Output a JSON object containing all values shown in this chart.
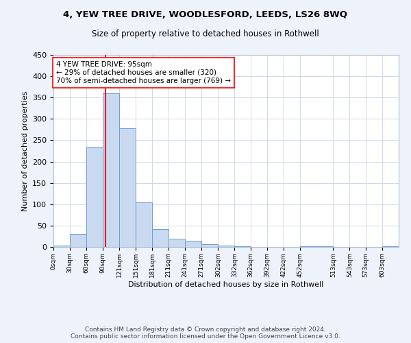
{
  "title": "4, YEW TREE DRIVE, WOODLESFORD, LEEDS, LS26 8WQ",
  "subtitle": "Size of property relative to detached houses in Rothwell",
  "xlabel": "Distribution of detached houses by size in Rothwell",
  "ylabel": "Number of detached properties",
  "bar_values": [
    4,
    31,
    235,
    360,
    278,
    105,
    41,
    20,
    14,
    6,
    4,
    1,
    0,
    0,
    0,
    2,
    0,
    0,
    0,
    1
  ],
  "bin_edges": [
    0,
    30,
    60,
    90,
    121,
    151,
    181,
    211,
    241,
    271,
    302,
    332,
    362,
    392,
    422,
    452,
    513,
    543,
    573,
    603,
    633
  ],
  "tick_labels": [
    "0sqm",
    "30sqm",
    "60sqm",
    "90sqm",
    "121sqm",
    "151sqm",
    "181sqm",
    "211sqm",
    "241sqm",
    "271sqm",
    "302sqm",
    "332sqm",
    "362sqm",
    "392sqm",
    "422sqm",
    "452sqm",
    "513sqm",
    "543sqm",
    "573sqm",
    "603sqm"
  ],
  "bar_color": "#c9d9f0",
  "bar_edge_color": "#6a9fd8",
  "vline_x": 95,
  "vline_color": "red",
  "ylim": [
    0,
    450
  ],
  "yticks": [
    0,
    50,
    100,
    150,
    200,
    250,
    300,
    350,
    400,
    450
  ],
  "annotation_text": "4 YEW TREE DRIVE: 95sqm\n← 29% of detached houses are smaller (320)\n70% of semi-detached houses are larger (769) →",
  "footer_text": "Contains HM Land Registry data © Crown copyright and database right 2024.\nContains public sector information licensed under the Open Government Licence v3.0.",
  "bg_color": "#eef2fb",
  "plot_bg_color": "#ffffff",
  "grid_color": "#d0d8e8"
}
